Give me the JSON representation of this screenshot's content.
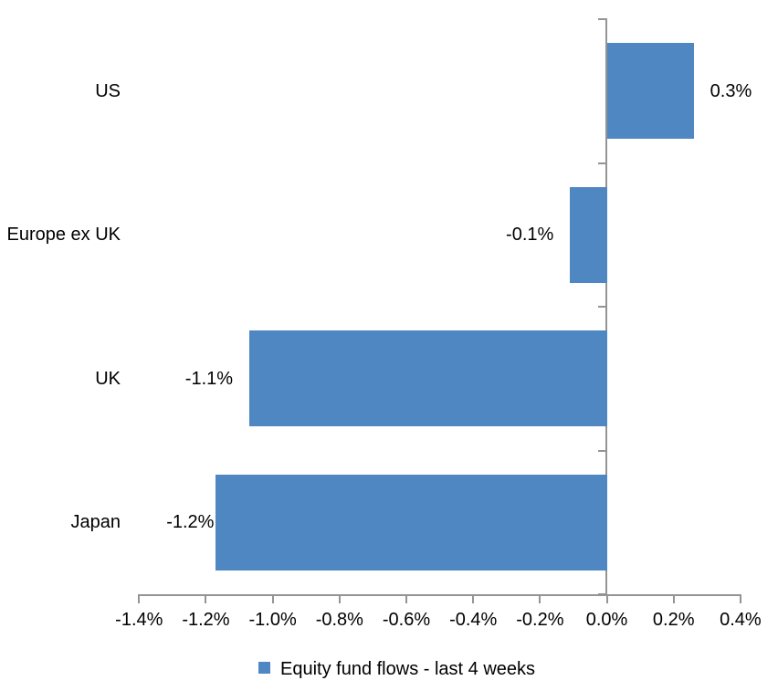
{
  "chart_data": {
    "type": "bar",
    "orientation": "horizontal",
    "categories": [
      "US",
      "Europe ex UK",
      "UK",
      "Japan"
    ],
    "series": [
      {
        "name": "Equity fund flows - last 4 weeks",
        "values_pct": [
          0.26,
          -0.11,
          -1.07,
          -1.17
        ],
        "data_labels": [
          "0.3%",
          "-0.1%",
          "-1.1%",
          "-1.2%"
        ]
      }
    ],
    "x_axis": {
      "min": -1.4,
      "max": 0.4,
      "step": 0.2,
      "tick_labels": [
        "-1.4%",
        "-1.2%",
        "-1.0%",
        "-0.8%",
        "-0.6%",
        "-0.4%",
        "-0.2%",
        "0.0%",
        "0.2%",
        "0.4%"
      ]
    },
    "legend": {
      "position": "bottom",
      "label": "Equity fund flows - last 4 weeks"
    },
    "colors": {
      "bar": "#4e87c1",
      "axis": "#949494",
      "text": "#000000",
      "background": "#ffffff"
    },
    "grid": "off"
  }
}
